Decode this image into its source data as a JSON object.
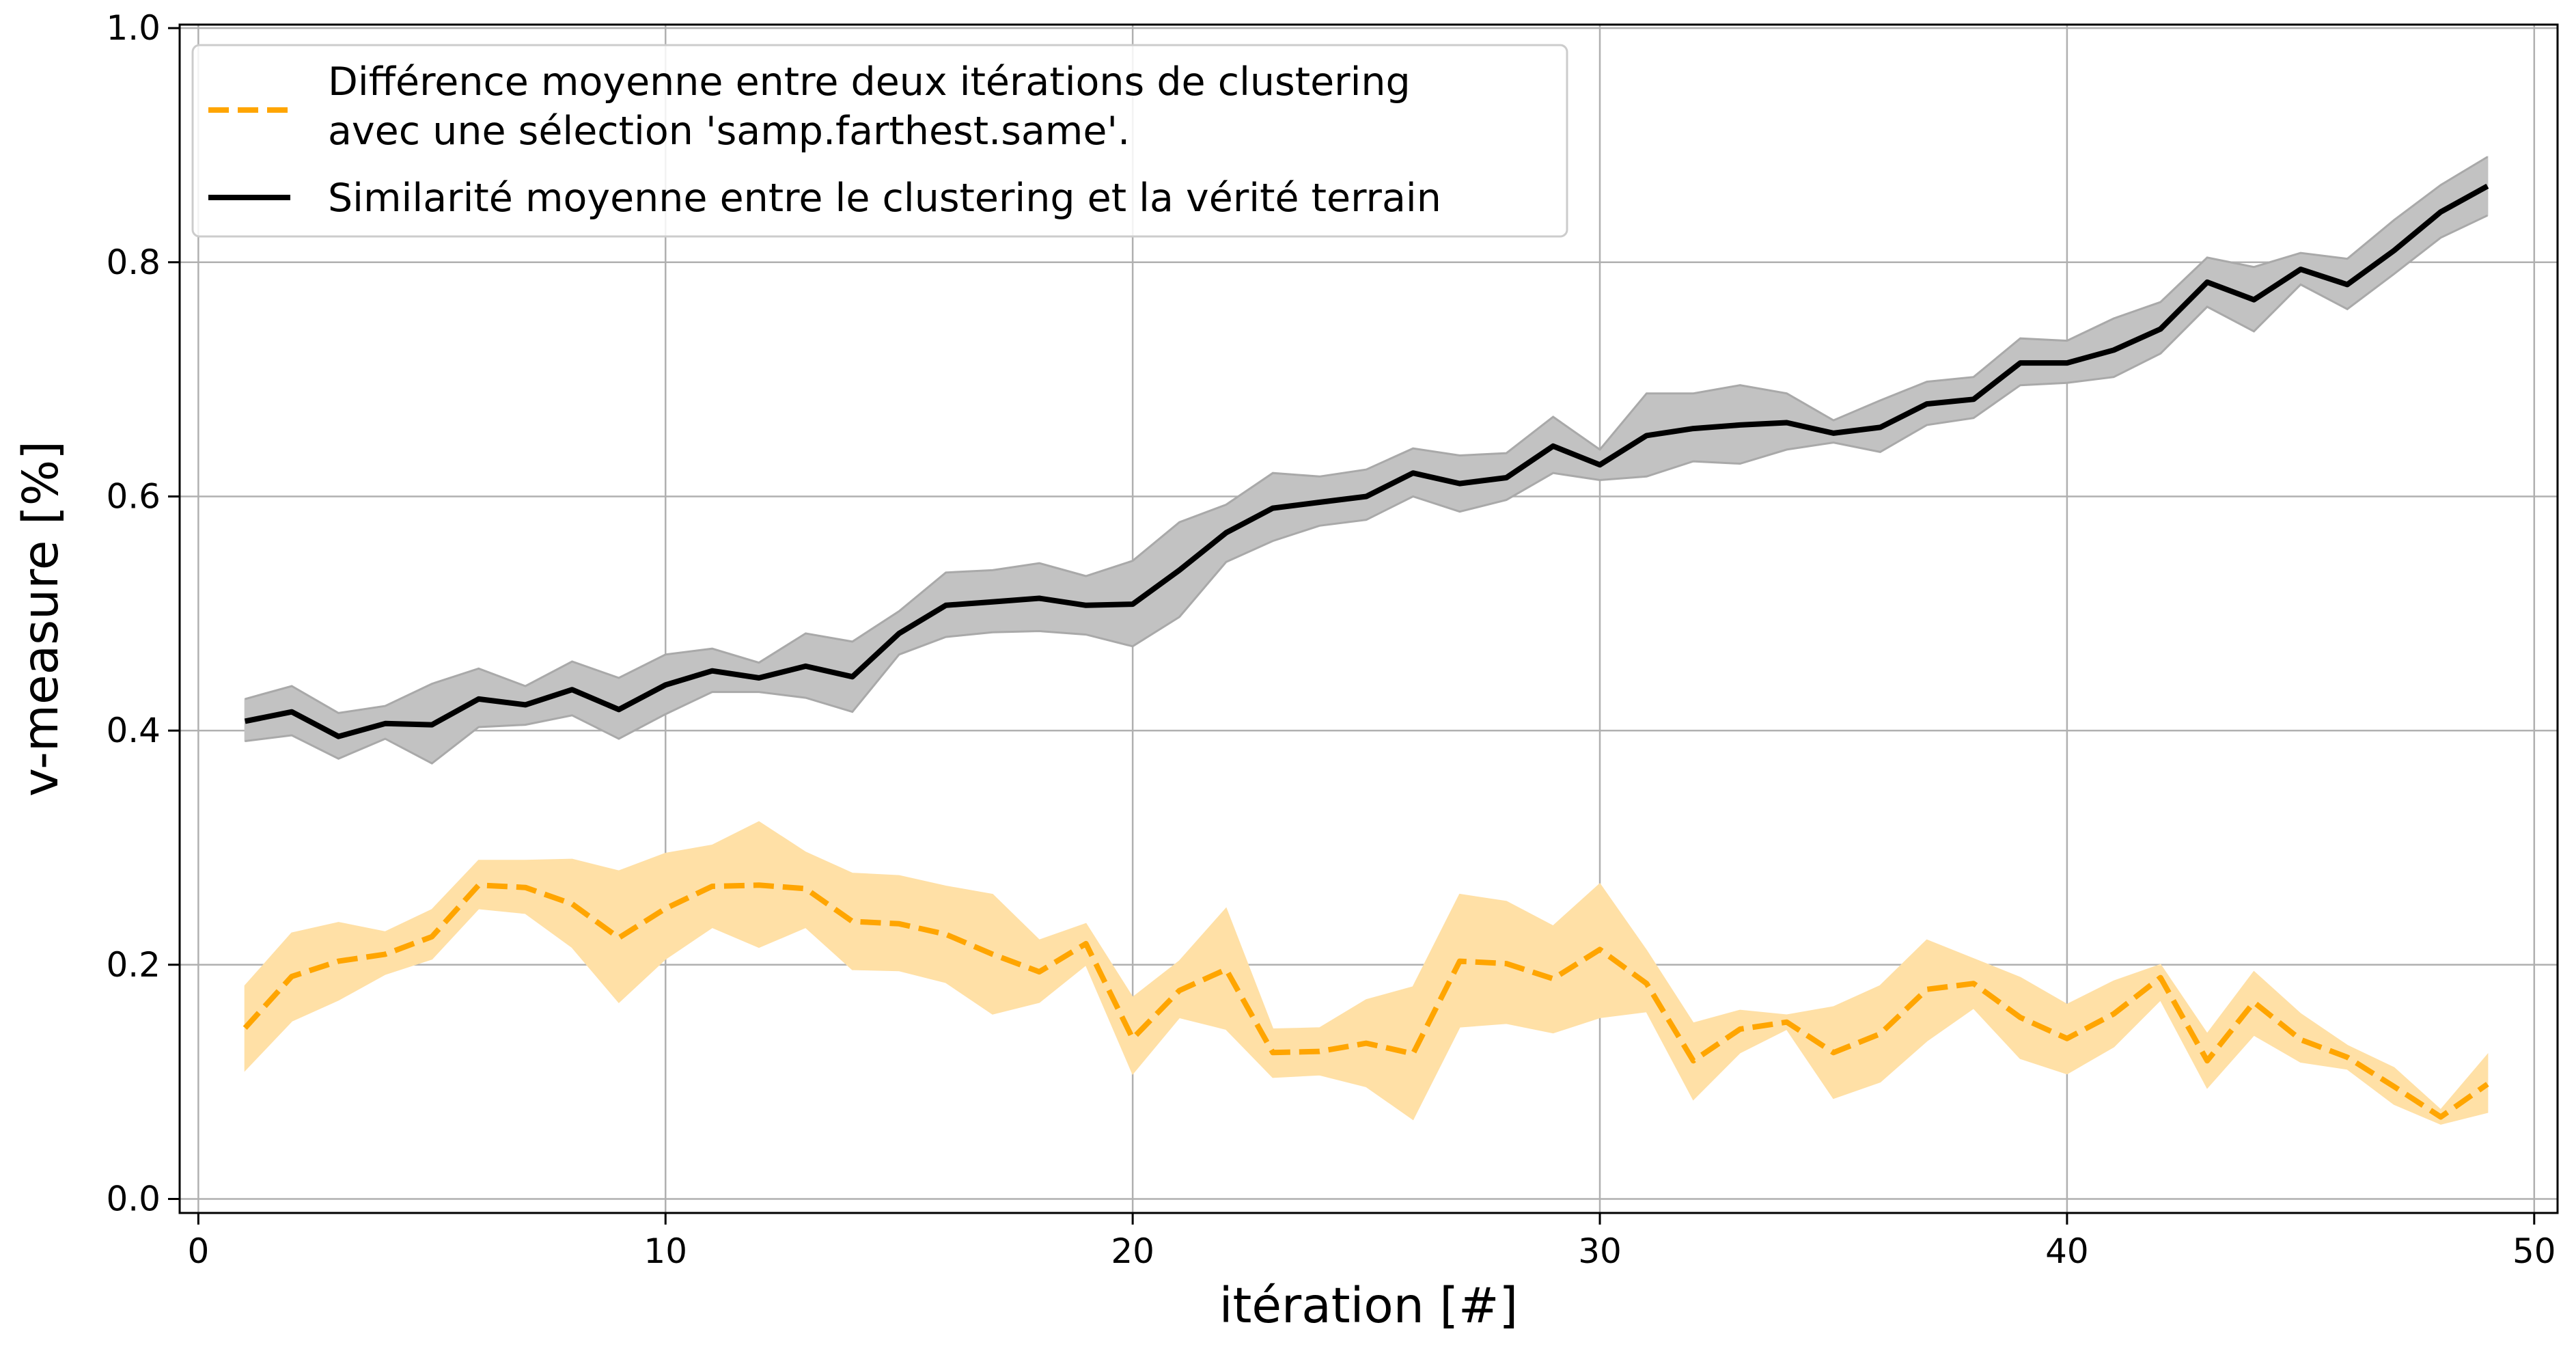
{
  "chart_data": {
    "type": "line",
    "xlabel": "itération [#]",
    "ylabel": "v-measure [%]",
    "xlim": [
      -0.4,
      50.5
    ],
    "ylim": [
      -0.012,
      1.003
    ],
    "xticks": [
      0,
      10,
      20,
      30,
      40,
      50
    ],
    "yticks": [
      0.0,
      0.2,
      0.4,
      0.6,
      0.8,
      1.0
    ],
    "xtick_labels": [
      "0",
      "10",
      "20",
      "30",
      "40",
      "50"
    ],
    "ytick_labels": [
      "0.0",
      "0.2",
      "0.4",
      "0.6",
      "0.8",
      "1.0"
    ],
    "grid": true,
    "legend_position": "top-left",
    "x": [
      1,
      2,
      3,
      4,
      5,
      6,
      7,
      8,
      9,
      10,
      11,
      12,
      13,
      14,
      15,
      16,
      17,
      18,
      19,
      20,
      21,
      22,
      23,
      24,
      25,
      26,
      27,
      28,
      29,
      30,
      31,
      32,
      33,
      34,
      35,
      36,
      37,
      38,
      39,
      40,
      41,
      42,
      43,
      44,
      45,
      46,
      47,
      48,
      49
    ],
    "series": [
      {
        "name": "Différence moyenne entre deux itérations de clustering\navec une sélection 'samp.farthest.same'.",
        "legend_lines": [
          "Différence moyenne entre deux itérations de clustering",
          "avec une sélection 'samp.farthest.same'."
        ],
        "color": "#ffa500",
        "band_color": "#ffe0a6",
        "style": "dashed",
        "values": [
          0.146,
          0.19,
          0.203,
          0.209,
          0.224,
          0.268,
          0.266,
          0.252,
          0.223,
          0.248,
          0.267,
          0.268,
          0.265,
          0.237,
          0.235,
          0.226,
          0.209,
          0.194,
          0.218,
          0.137,
          0.178,
          0.196,
          0.125,
          0.126,
          0.133,
          0.124,
          0.203,
          0.201,
          0.188,
          0.213,
          0.184,
          0.118,
          0.145,
          0.151,
          0.125,
          0.141,
          0.179,
          0.184,
          0.155,
          0.137,
          0.158,
          0.189,
          0.118,
          0.168,
          0.136,
          0.121,
          0.096,
          0.07,
          0.098
        ],
        "lower": [
          0.11,
          0.152,
          0.17,
          0.192,
          0.205,
          0.248,
          0.244,
          0.215,
          0.168,
          0.205,
          0.232,
          0.215,
          0.232,
          0.196,
          0.195,
          0.185,
          0.158,
          0.168,
          0.2,
          0.107,
          0.155,
          0.145,
          0.104,
          0.106,
          0.096,
          0.068,
          0.147,
          0.15,
          0.142,
          0.155,
          0.16,
          0.085,
          0.125,
          0.145,
          0.086,
          0.1,
          0.135,
          0.163,
          0.12,
          0.107,
          0.13,
          0.17,
          0.095,
          0.14,
          0.117,
          0.111,
          0.081,
          0.064,
          0.074
        ],
        "upper": [
          0.182,
          0.227,
          0.236,
          0.228,
          0.247,
          0.289,
          0.289,
          0.29,
          0.28,
          0.295,
          0.302,
          0.322,
          0.296,
          0.278,
          0.276,
          0.267,
          0.26,
          0.221,
          0.235,
          0.172,
          0.203,
          0.248,
          0.145,
          0.146,
          0.17,
          0.181,
          0.26,
          0.254,
          0.233,
          0.269,
          0.212,
          0.15,
          0.161,
          0.157,
          0.164,
          0.182,
          0.221,
          0.205,
          0.189,
          0.166,
          0.186,
          0.2,
          0.141,
          0.194,
          0.158,
          0.131,
          0.112,
          0.076,
          0.123
        ]
      },
      {
        "name": "Similarité moyenne entre le clustering et la vérité terrain",
        "legend_lines": [
          "Similarité moyenne entre le clustering et la vérité terrain"
        ],
        "color": "#000000",
        "band_color": "#c2c2c2",
        "style": "solid",
        "values": [
          0.408,
          0.416,
          0.395,
          0.406,
          0.405,
          0.427,
          0.422,
          0.435,
          0.418,
          0.439,
          0.451,
          0.445,
          0.455,
          0.446,
          0.483,
          0.507,
          0.51,
          0.513,
          0.507,
          0.508,
          0.537,
          0.569,
          0.59,
          0.595,
          0.6,
          0.62,
          0.611,
          0.616,
          0.643,
          0.627,
          0.652,
          0.658,
          0.661,
          0.663,
          0.654,
          0.659,
          0.679,
          0.683,
          0.714,
          0.714,
          0.725,
          0.743,
          0.783,
          0.768,
          0.794,
          0.781,
          0.81,
          0.843,
          0.865
        ],
        "lower": [
          0.391,
          0.396,
          0.376,
          0.393,
          0.372,
          0.403,
          0.405,
          0.413,
          0.393,
          0.414,
          0.433,
          0.433,
          0.428,
          0.416,
          0.465,
          0.48,
          0.484,
          0.485,
          0.482,
          0.472,
          0.497,
          0.544,
          0.562,
          0.575,
          0.58,
          0.6,
          0.587,
          0.597,
          0.62,
          0.614,
          0.617,
          0.63,
          0.628,
          0.64,
          0.646,
          0.638,
          0.661,
          0.667,
          0.695,
          0.697,
          0.702,
          0.722,
          0.762,
          0.741,
          0.781,
          0.76,
          0.79,
          0.821,
          0.84
        ],
        "upper": [
          0.427,
          0.438,
          0.415,
          0.421,
          0.44,
          0.453,
          0.438,
          0.459,
          0.445,
          0.465,
          0.47,
          0.458,
          0.483,
          0.476,
          0.502,
          0.535,
          0.537,
          0.543,
          0.532,
          0.545,
          0.578,
          0.593,
          0.62,
          0.617,
          0.623,
          0.641,
          0.635,
          0.637,
          0.668,
          0.64,
          0.688,
          0.688,
          0.695,
          0.688,
          0.665,
          0.682,
          0.698,
          0.702,
          0.735,
          0.733,
          0.752,
          0.766,
          0.804,
          0.796,
          0.808,
          0.803,
          0.836,
          0.866,
          0.89
        ]
      }
    ]
  }
}
